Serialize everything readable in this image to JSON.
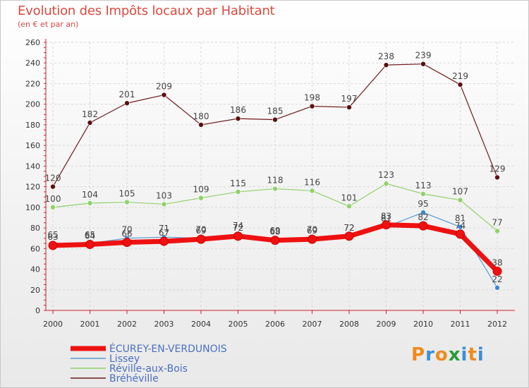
{
  "header": {
    "title": "Evolution des Impôts locaux par Habitant",
    "subtitle": "(en € et par an)"
  },
  "logo": {
    "letters": [
      "P",
      "r",
      "o",
      "x",
      "i",
      "t",
      "i"
    ],
    "colors": [
      "#f08a1c",
      "#3a8fd6",
      "#f08a1c",
      "#2c9b3a",
      "#3a8fd6",
      "#f08a1c",
      "#3a8fd6"
    ]
  },
  "chart_data": {
    "type": "line",
    "title": "Evolution des Impôts locaux par Habitant",
    "subtitle": "(en € et par an)",
    "xlabel": "",
    "ylabel": "",
    "ylim": [
      0,
      260
    ],
    "yticks": [
      0,
      20,
      40,
      60,
      80,
      100,
      120,
      140,
      160,
      180,
      200,
      220,
      240,
      260
    ],
    "categories": [
      "2000",
      "2001",
      "2002",
      "2003",
      "2004",
      "2005",
      "2006",
      "2007",
      "2008",
      "2009",
      "2010",
      "2011",
      "2012"
    ],
    "series": [
      {
        "name": "Bréhéville",
        "color": "#6b1a1a",
        "marker": "#5a1010",
        "width": 1.2,
        "values": [
          120,
          182,
          201,
          209,
          180,
          186,
          185,
          198,
          197,
          238,
          239,
          219,
          129
        ],
        "labels": [
          "120",
          "182",
          "201",
          "209",
          "180",
          "186",
          "185",
          "198",
          "197",
          "238",
          "239",
          "219",
          "129"
        ]
      },
      {
        "name": "Réville-aux-Bois",
        "color": "#8fd16a",
        "marker": "#8fd16a",
        "width": 1.2,
        "values": [
          100,
          104,
          105,
          103,
          109,
          115,
          118,
          116,
          101,
          123,
          113,
          107,
          77
        ],
        "labels": [
          "100",
          "104",
          "105",
          "103",
          "109",
          "115",
          "118",
          "116",
          "101",
          "123",
          "113",
          "107",
          "77"
        ]
      },
      {
        "name": "Lissey",
        "color": "#5b9bd0",
        "marker": "#3a86cf",
        "width": 1.2,
        "values": [
          65,
          65,
          70,
          71,
          70,
          74,
          69,
          70,
          72,
          81,
          95,
          81,
          22
        ],
        "labels": [
          "65",
          "65",
          "70",
          "71",
          "70",
          "74",
          "69",
          "70",
          "72",
          "81",
          "95",
          "81",
          "22"
        ]
      },
      {
        "name": "ÉCUREY-EN-VERDUNOIS",
        "color": "#ee1111",
        "marker": "#ee1111",
        "width": 7,
        "values": [
          63,
          64,
          66,
          67,
          69,
          72,
          68,
          69,
          72,
          83,
          82,
          74,
          38
        ],
        "labels": [
          "63",
          "64",
          "66",
          "67",
          "69",
          "72",
          "68",
          "69",
          "72",
          "83",
          "82",
          "74",
          "38"
        ]
      }
    ],
    "legend": {
      "position": "bottom-left",
      "entries": [
        "ÉCUREY-EN-VERDUNOIS",
        "Lissey",
        "Réville-aux-Bois",
        "Bréhéville"
      ]
    }
  }
}
